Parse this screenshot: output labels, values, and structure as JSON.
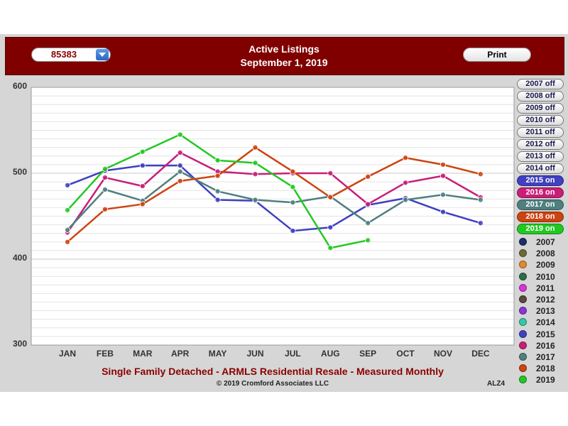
{
  "header": {
    "zip_value": "85383",
    "title_line1": "Active Listings",
    "title_line2": "September 1, 2019",
    "print_label": "Print"
  },
  "footer": {
    "subtitle": "Single Family Detached - ARMLS Residential Resale - Measured Monthly",
    "copyright": "© 2019 Cromford Associates LLC",
    "code": "ALZ4"
  },
  "toggles": [
    {
      "label": "2007 off",
      "state": "off",
      "color": "#1f2d6b"
    },
    {
      "label": "2008 off",
      "state": "off",
      "color": "#6b6b3a"
    },
    {
      "label": "2009 off",
      "state": "off",
      "color": "#e0892f"
    },
    {
      "label": "2010 off",
      "state": "off",
      "color": "#2f6b4a"
    },
    {
      "label": "2011 off",
      "state": "off",
      "color": "#d636d6"
    },
    {
      "label": "2012 off",
      "state": "off",
      "color": "#5a4a3a"
    },
    {
      "label": "2013 off",
      "state": "off",
      "color": "#8a36d6"
    },
    {
      "label": "2014 off",
      "state": "off",
      "color": "#36c8a8"
    },
    {
      "label": "2015 on",
      "state": "on",
      "color": "#4040c0"
    },
    {
      "label": "2016 on",
      "state": "on",
      "color": "#c81e78"
    },
    {
      "label": "2017 on",
      "state": "on",
      "color": "#4f7f7f"
    },
    {
      "label": "2018 on",
      "state": "on",
      "color": "#cc4411"
    },
    {
      "label": "2019 on",
      "state": "on",
      "color": "#22c822"
    }
  ],
  "legend": [
    {
      "label": "2007",
      "color": "#1f2d6b"
    },
    {
      "label": "2008",
      "color": "#6b6b3a"
    },
    {
      "label": "2009",
      "color": "#e0892f"
    },
    {
      "label": "2010",
      "color": "#2f6b4a"
    },
    {
      "label": "2011",
      "color": "#d636d6"
    },
    {
      "label": "2012",
      "color": "#5a4a3a"
    },
    {
      "label": "2013",
      "color": "#8a36d6"
    },
    {
      "label": "2014",
      "color": "#36c8a8"
    },
    {
      "label": "2015",
      "color": "#4040c0"
    },
    {
      "label": "2016",
      "color": "#c81e78"
    },
    {
      "label": "2017",
      "color": "#4f7f7f"
    },
    {
      "label": "2018",
      "color": "#cc4411"
    },
    {
      "label": "2019",
      "color": "#22c822"
    }
  ],
  "chart_data": {
    "type": "line",
    "title": "Active Listings",
    "subtitle": "Single Family Detached - ARMLS Residential Resale - Measured Monthly",
    "categories": [
      "JAN",
      "FEB",
      "MAR",
      "APR",
      "MAY",
      "JUN",
      "JUL",
      "AUG",
      "SEP",
      "OCT",
      "NOV",
      "DEC"
    ],
    "ylim": [
      300,
      600
    ],
    "yticks": [
      "300",
      "400",
      "500",
      "600"
    ],
    "grid": true,
    "series": [
      {
        "name": "2015",
        "color": "#4040c0",
        "values": [
          486,
          503,
          509,
          509,
          469,
          468,
          433,
          437,
          463,
          471,
          455,
          442
        ]
      },
      {
        "name": "2016",
        "color": "#c81e78",
        "values": [
          431,
          495,
          485,
          524,
          502,
          499,
          500,
          500,
          464,
          489,
          497,
          472
        ]
      },
      {
        "name": "2017",
        "color": "#4f7f7f",
        "values": [
          434,
          481,
          468,
          502,
          479,
          469,
          466,
          473,
          442,
          469,
          475,
          469
        ]
      },
      {
        "name": "2018",
        "color": "#cc4411",
        "values": [
          420,
          458,
          464,
          491,
          497,
          530,
          502,
          472,
          496,
          518,
          510,
          499
        ]
      },
      {
        "name": "2019",
        "color": "#22c822",
        "values": [
          457,
          505,
          525,
          545,
          515,
          512,
          484,
          413,
          422,
          null,
          null,
          null
        ]
      }
    ]
  }
}
